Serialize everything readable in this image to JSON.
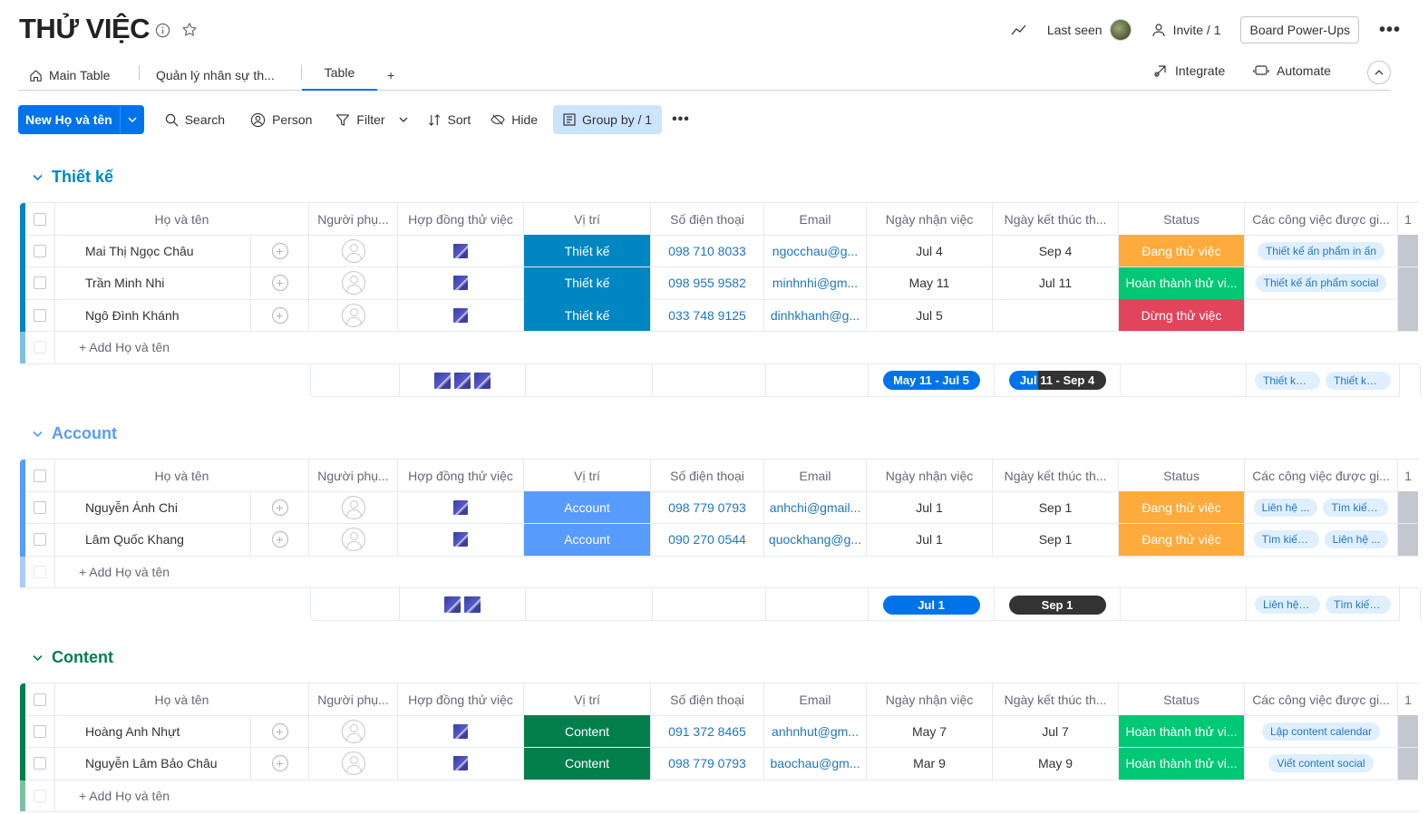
{
  "board": {
    "title": "THỬ VIỆC",
    "last_seen_label": "Last seen",
    "invite_label": "Invite / 1",
    "powerups_label": "Board Power-Ups"
  },
  "tabs": {
    "items": [
      {
        "label": "Main Table",
        "icon": "home-icon"
      },
      {
        "label": "Quản lý nhân sự th..."
      },
      {
        "label": "Table",
        "active": true
      }
    ],
    "add": "+",
    "integrate": "Integrate",
    "automate": "Automate"
  },
  "toolbar": {
    "new_label": "New Họ và tên",
    "search": "Search",
    "person": "Person",
    "filter": "Filter",
    "sort": "Sort",
    "hide": "Hide",
    "groupby": "Group by / 1"
  },
  "columns": [
    "Họ và tên",
    "Người phụ...",
    "Hợp đồng thử việc",
    "Vị trí",
    "Số điện thoại",
    "Email",
    "Ngày nhận việc",
    "Ngày kết thúc th...",
    "Status",
    "Các công việc được gi...",
    "1"
  ],
  "add_row_label": "+ Add Họ và tên",
  "colors": {
    "orange": "#fdab3d",
    "green": "#00c875",
    "red": "#e2445c",
    "thietke": "#0086c0",
    "account": "#579bfc",
    "content": "#037f4c"
  },
  "groups": [
    {
      "name": "Thiết kế",
      "color": "#0086c0",
      "rows": [
        {
          "name": "Mai Thị Ngọc Châu",
          "pos": "Thiết kế",
          "phone": "098 710 8033",
          "email": "ngocchau@g...",
          "start": "Jul 4",
          "end": "Sep 4",
          "status": "Đang thử việc",
          "status_color": "#fdab3d",
          "tasks": [
            "Thiết kế ấn phẩm in ấn"
          ]
        },
        {
          "name": "Trần Minh Nhi",
          "pos": "Thiết kế",
          "phone": "098 955 9582",
          "email": "minhnhi@gm...",
          "start": "May 11",
          "end": "Jul 11",
          "status": "Hoàn thành thử vi...",
          "status_color": "#00c875",
          "tasks": [
            "Thiết kế ấn phẩm social"
          ]
        },
        {
          "name": "Ngô Đình Khánh",
          "pos": "Thiết kế",
          "phone": "033 748 9125",
          "email": "dinhkhanh@g...",
          "start": "Jul 5",
          "end": "",
          "status": "Dừng thử việc",
          "status_color": "#e2445c",
          "tasks": []
        }
      ],
      "summary": {
        "files": 3,
        "start": "May 11 - Jul 5",
        "end": "Jul 11 - Sep 4",
        "tasks": [
          "Thiết kế ...",
          "Thiết kế ấ..."
        ]
      }
    },
    {
      "name": "Account",
      "color": "#579bfc",
      "rows": [
        {
          "name": "Nguyễn Ánh Chi",
          "pos": "Account",
          "phone": "098 779 0793",
          "email": "anhchi@gmail...",
          "start": "Jul 1",
          "end": "Sep 1",
          "status": "Đang thử việc",
          "status_color": "#fdab3d",
          "tasks": [
            "Liên hệ ...",
            "Tìm kiếm ..."
          ]
        },
        {
          "name": "Lâm Quốc Khang",
          "pos": "Account",
          "phone": "090 270 0544",
          "email": "quockhang@g...",
          "start": "Jul 1",
          "end": "Sep 1",
          "status": "Đang thử việc",
          "status_color": "#fdab3d",
          "tasks": [
            "Tìm kiếm ...",
            "Liên hệ ..."
          ]
        }
      ],
      "summary": {
        "files": 2,
        "start": "Jul 1",
        "end": "Sep 1",
        "tasks": [
          "Liên hệ k...",
          "Tìm kiếm ..."
        ]
      }
    },
    {
      "name": "Content",
      "color": "#037f4c",
      "rows": [
        {
          "name": "Hoàng Anh Nhựt",
          "pos": "Content",
          "phone": "091 372 8465",
          "email": "anhnhut@gm...",
          "start": "May 7",
          "end": "Jul 7",
          "status": "Hoàn thành thử vi...",
          "status_color": "#00c875",
          "tasks": [
            "Lập content calendar"
          ]
        },
        {
          "name": "Nguyễn Lâm Bảo Châu",
          "pos": "Content",
          "phone": "098 779 0793",
          "email": "baochau@gm...",
          "start": "Mar 9",
          "end": "May 9",
          "status": "Hoàn thành thử vi...",
          "status_color": "#00c875",
          "tasks": [
            "Viết content social"
          ]
        }
      ]
    }
  ]
}
